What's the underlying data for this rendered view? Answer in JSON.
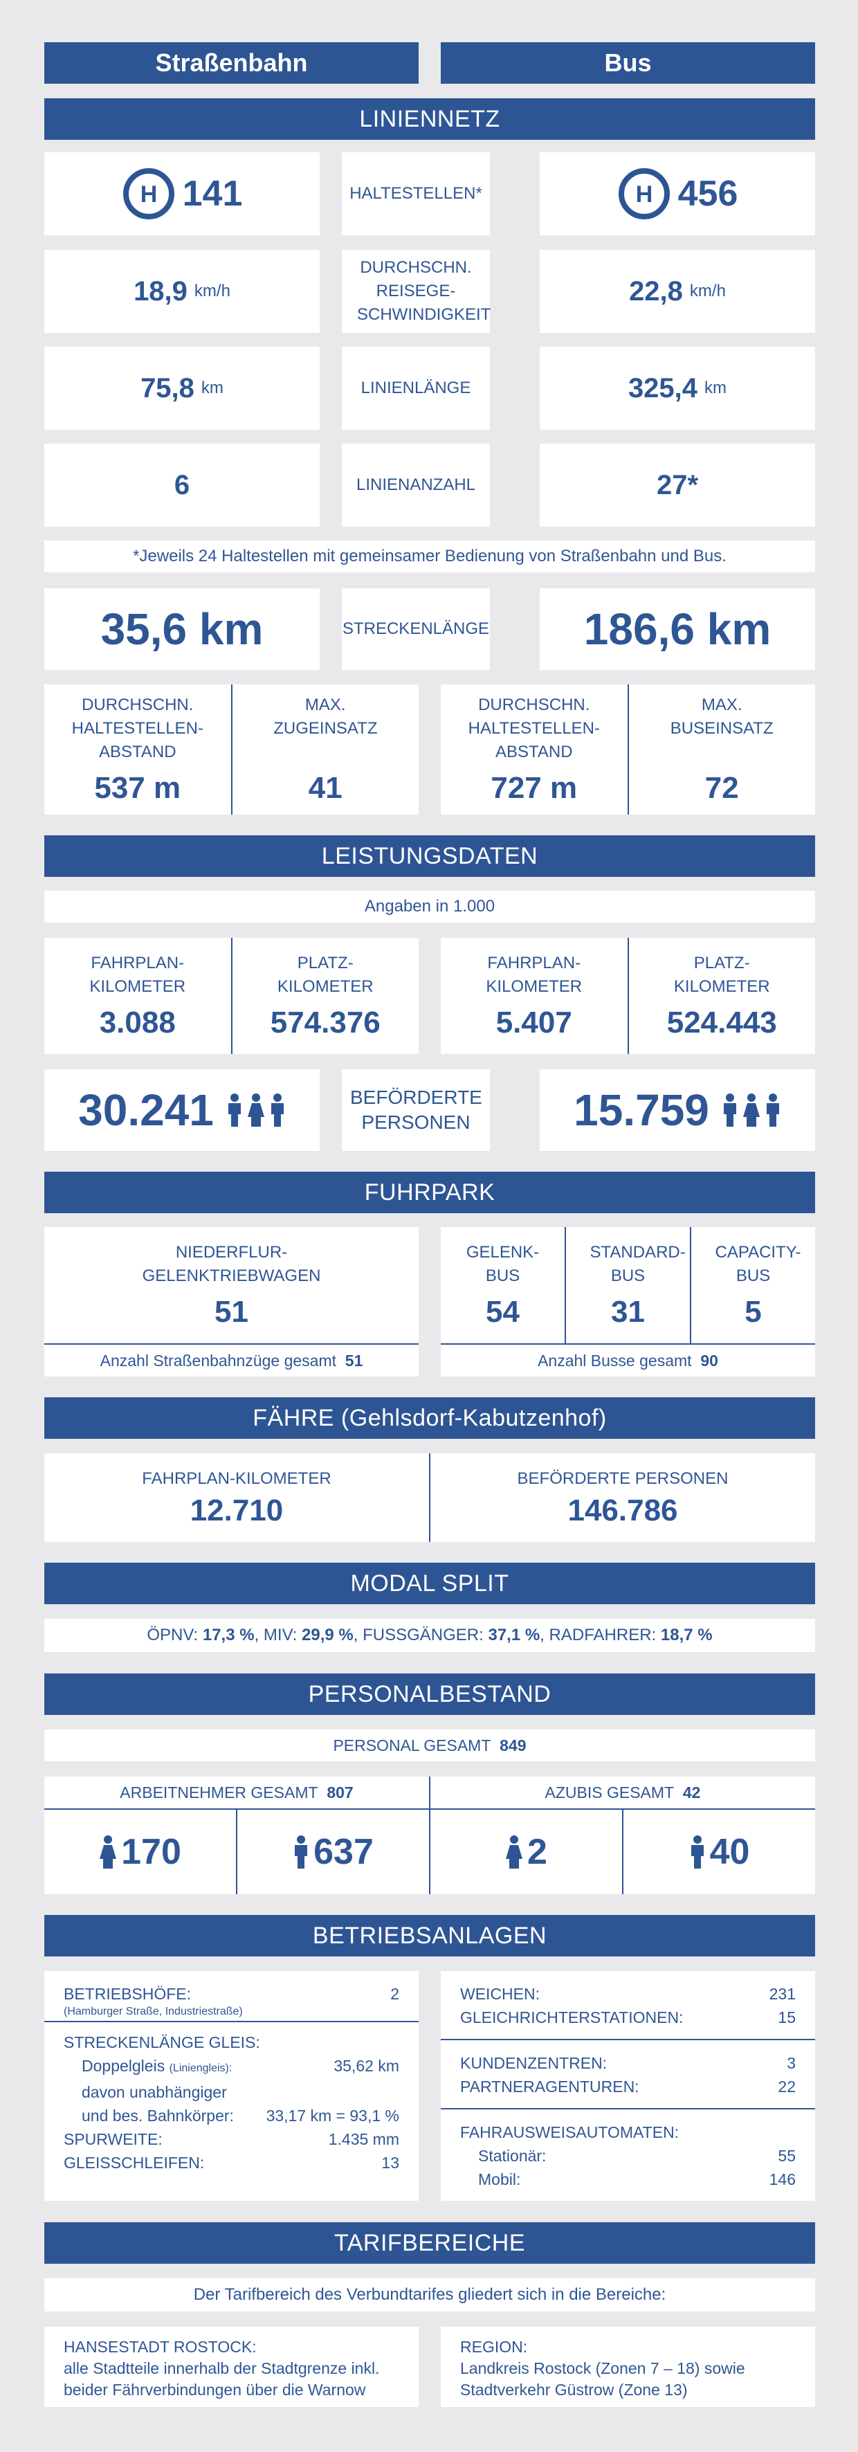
{
  "columns": {
    "tram": "Straßenbahn",
    "bus": "Bus"
  },
  "liniennetz": {
    "title": "LINIENNETZ",
    "haltestellen": {
      "label": "HALTESTELLEN*",
      "tram": "141",
      "bus": "456"
    },
    "geschwindigkeit": {
      "label": "DURCHSCHN. REISEGE-SCHWINDIGKEIT",
      "tram": "18,9",
      "bus": "22,8",
      "unit": "km/h"
    },
    "linienlaenge": {
      "label": "LINIENLÄNGE",
      "tram": "75,8",
      "bus": "325,4",
      "unit": "km"
    },
    "linienanzahl": {
      "label": "LINIENANZAHL",
      "tram": "6",
      "bus": "27*"
    },
    "footnote": "*Jeweils 24 Haltestellen mit gemeinsamer Bedienung von Straßenbahn und Bus.",
    "streckenlaenge": {
      "label": "STRECKENLÄNGE",
      "tram": "35,6 km",
      "bus": "186,6 km"
    },
    "abstand_label": "DURCHSCHN. HALTESTELLEN-ABSTAND",
    "tram_abstand": "537 m",
    "max_zug_label": "MAX. ZUGEINSATZ",
    "max_zug": "41",
    "bus_abstand": "727 m",
    "max_bus_label": "MAX. BUSEINSATZ",
    "max_bus": "72"
  },
  "leistung": {
    "title": "LEISTUNGSDATEN",
    "note": "Angaben in 1.000",
    "fahrplan_label": "FAHRPLAN-KILOMETER",
    "platz_label": "PLATZ-KILOMETER",
    "tram_fahrplan": "3.088",
    "tram_platz": "574.376",
    "bus_fahrplan": "5.407",
    "bus_platz": "524.443",
    "befoerderte_label": "BEFÖRDERTE PERSONEN",
    "tram_personen": "30.241",
    "bus_personen": "15.759"
  },
  "fuhrpark": {
    "title": "FUHRPARK",
    "nf_label": "NIEDERFLUR-GELENKTRIEBWAGEN",
    "nf_value": "51",
    "tram_total_label": "Anzahl Straßenbahnzüge gesamt",
    "tram_total": "51",
    "gelenk_label": "GELENK-BUS",
    "gelenk_value": "54",
    "standard_label": "STANDARD-BUS",
    "standard_value": "31",
    "capacity_label": "CAPACITY-BUS",
    "capacity_value": "5",
    "bus_total_label": "Anzahl Busse gesamt",
    "bus_total": "90"
  },
  "faehre": {
    "title": "FÄHRE (Gehlsdorf-Kabutzenhof)",
    "km_label": "FAHRPLAN-KILOMETER",
    "km_value": "12.710",
    "pers_label": "BEFÖRDERTE PERSONEN",
    "pers_value": "146.786"
  },
  "modal": {
    "title": "MODAL SPLIT",
    "oepnv_label": "ÖPNV:",
    "oepnv": "17,3 %",
    "miv_label": "MIV:",
    "miv": "29,9 %",
    "fuss_label": "FUSSGÄNGER:",
    "fuss": "37,1 %",
    "rad_label": "RADFAHRER:",
    "rad": "18,7 %"
  },
  "personal": {
    "title": "PERSONALBESTAND",
    "gesamt_label": "PERSONAL GESAMT",
    "gesamt": "849",
    "an_label": "ARBEITNEHMER GESAMT",
    "an": "807",
    "azubi_label": "AZUBIS GESAMT",
    "azubi": "42",
    "an_female": "170",
    "an_male": "637",
    "azubi_female": "2",
    "azubi_male": "40"
  },
  "betrieb": {
    "title": "BETRIEBSANLAGEN",
    "hoefe_label": "BETRIEBSHÖFE:",
    "hoefe": "2",
    "hoefe_note": "(Hamburger Straße, Industriestraße)",
    "gleis_label": "STRECKENLÄNGE GLEIS:",
    "doppel_label": "Doppelgleis",
    "doppel_note": "(Liniengleis):",
    "doppel": "35,62 km",
    "davon": "davon unabhängiger",
    "bes_label": "und bes. Bahnkörper:",
    "bes": "33,17 km = 93,1 %",
    "spur_label": "SPURWEITE:",
    "spur": "1.435 mm",
    "schleifen_label": "GLEISSCHLEIFEN:",
    "schleifen": "13",
    "weichen_label": "WEICHEN:",
    "weichen": "231",
    "gleichr_label": "GLEICHRICHTERSTATIONEN:",
    "gleichr": "15",
    "kunden_label": "KUNDENZENTREN:",
    "kunden": "3",
    "partner_label": "PARTNERAGENTUREN:",
    "partner": "22",
    "automaten_label": "FAHRAUSWEISAUTOMATEN:",
    "stationaer_label": "Stationär:",
    "stationaer": "55",
    "mobil_label": "Mobil:",
    "mobil": "146"
  },
  "tarif": {
    "title": "TARIFBEREICHE",
    "intro": "Der Tarifbereich des Verbundtarifes gliedert sich in die Bereiche:",
    "left_title": "HANSESTADT ROSTOCK:",
    "left_line1": "alle Stadtteile innerhalb der Stadtgrenze inkl.",
    "left_line2": "beider Fährverbindungen über die Warnow",
    "right_title": "REGION:",
    "right_line1": "Landkreis Rostock (Zonen 7 – 18) sowie",
    "right_line2": "Stadtverkehr Güstrow (Zone 13)"
  }
}
